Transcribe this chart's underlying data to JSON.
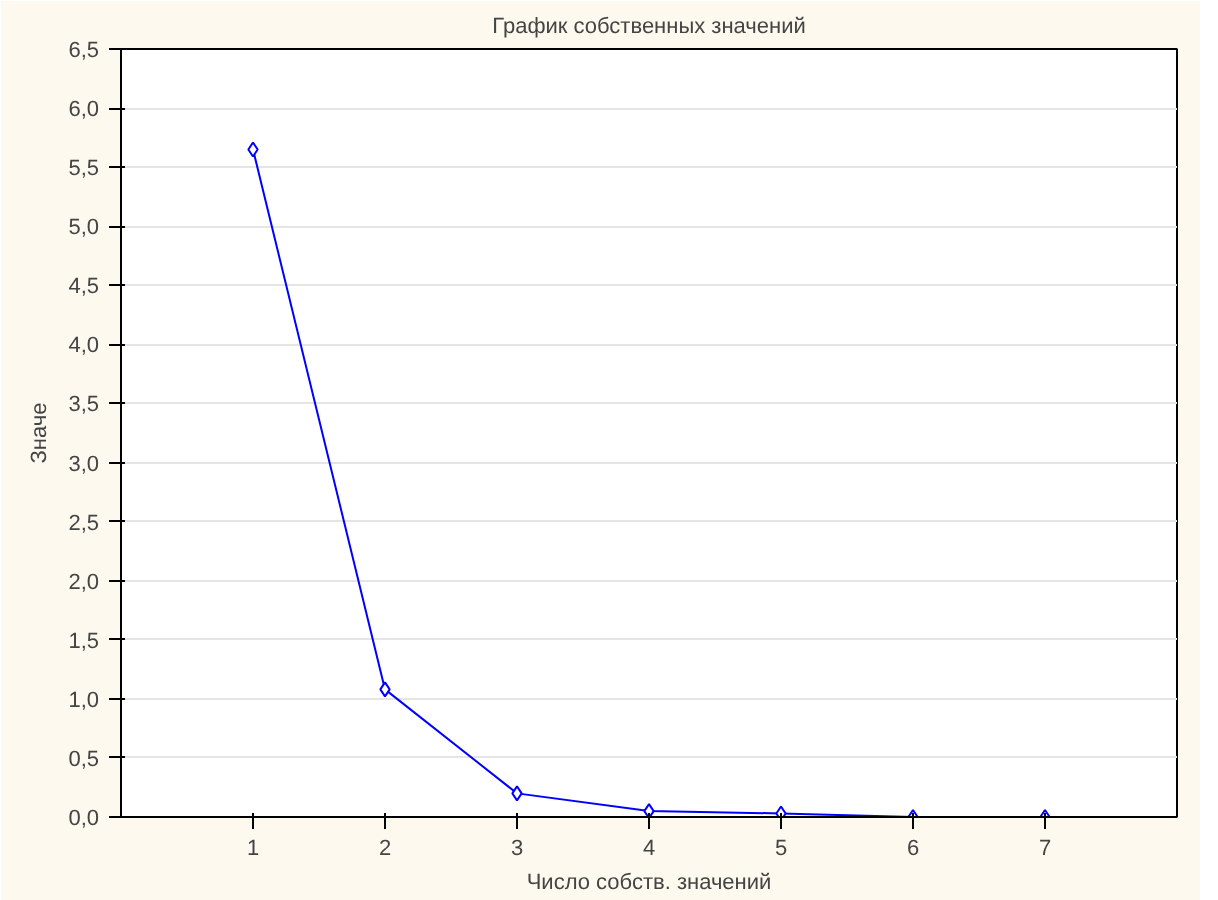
{
  "chart_data": {
    "type": "line",
    "title": "График собственных значений",
    "xlabel": "Число собств. значений",
    "ylabel": "Значе",
    "x": [
      1,
      2,
      3,
      4,
      5,
      6,
      7
    ],
    "series": [
      {
        "color": "#0000ff",
        "values": [
          5.65,
          1.08,
          0.2,
          0.05,
          0.03,
          0.0,
          0.0
        ]
      }
    ],
    "xlim": [
      0,
      8
    ],
    "xticks": [
      1,
      2,
      3,
      4,
      5,
      6,
      7
    ],
    "ylim": [
      0,
      6.5
    ],
    "yticks": [
      {
        "value": 0,
        "label": "0,0"
      },
      {
        "value": 0.5,
        "label": "0,5"
      },
      {
        "value": 1,
        "label": "1,0"
      },
      {
        "value": 1.5,
        "label": "1,5"
      },
      {
        "value": 2,
        "label": "2,0"
      },
      {
        "value": 2.5,
        "label": "2,5"
      },
      {
        "value": 3,
        "label": "3,0"
      },
      {
        "value": 3.5,
        "label": "3,5"
      },
      {
        "value": 4,
        "label": "4,0"
      },
      {
        "value": 4.5,
        "label": "4,5"
      },
      {
        "value": 5,
        "label": "5,0"
      },
      {
        "value": 5.5,
        "label": "5,5"
      },
      {
        "value": 6,
        "label": "6,0"
      },
      {
        "value": 6.5,
        "label": "6,5"
      }
    ],
    "grid": "y",
    "marker": "diamond",
    "line_style": "solid"
  }
}
